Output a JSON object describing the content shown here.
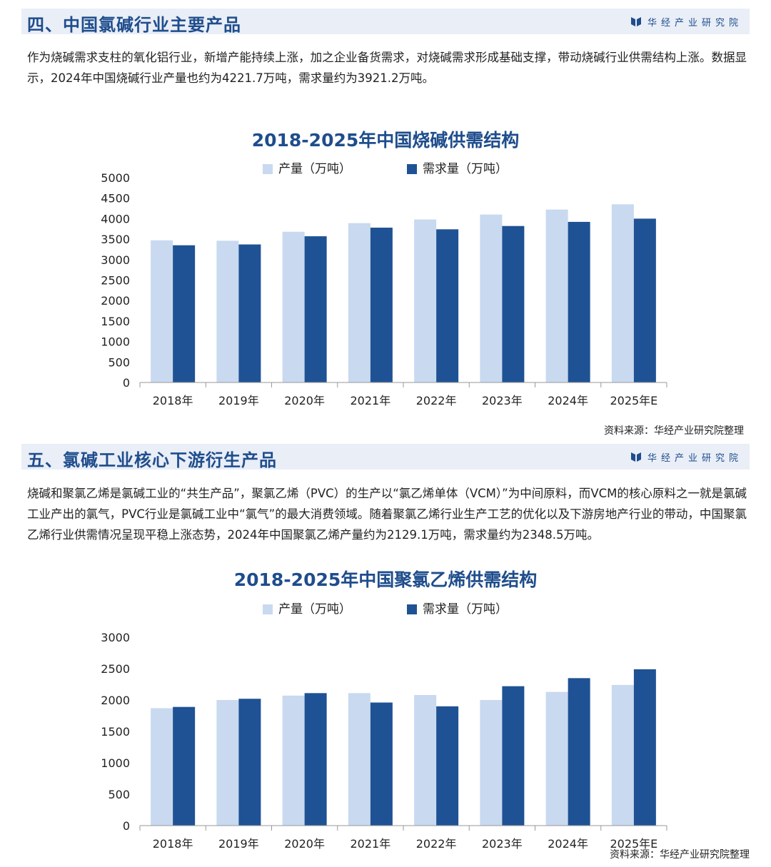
{
  "brand": {
    "name": "华经产业研究院"
  },
  "colors": {
    "production": "#c8d9f0",
    "demand": "#1f5294",
    "title": "#1f4d8c"
  },
  "section4": {
    "title": "四、中国氯碱行业主要产品",
    "paragraph": "作为烧碱需求支柱的氧化铝行业，新增产能持续上涨，加之企业备货需求，对烧碱需求形成基础支撑，带动烧碱行业供需结构上涨。数据显示，2024年中国烧碱行业产量也约为4221.7万吨，需求量约为3921.2万吨。",
    "source": "资料来源：华经产业研究院整理"
  },
  "section5": {
    "title": "五、氯碱工业核心下游衍生产品",
    "paragraph": "烧碱和聚氯乙烯是氯碱工业的“共生产品”，聚氯乙烯（PVC）的生产以“氯乙烯单体（VCM）”为中间原料，而VCM的核心原料之一就是氯碱工业产出的氯气，PVC行业是氯碱工业中“氯气”的最大消费领域。随着聚氯乙烯行业生产工艺的优化以及下游房地产行业的带动，中国聚氯乙烯行业供需情况呈现平稳上涨态势，2024年中国聚氯乙烯产量约为2129.1万吨，需求量约为2348.5万吨。",
    "source": "资料来源：华经产业研究院整理"
  },
  "chart_data": [
    {
      "type": "bar",
      "title": "2018-2025年中国烧碱供需结构",
      "categories": [
        "2018年",
        "2019年",
        "2020年",
        "2021年",
        "2022年",
        "2023年",
        "2024年",
        "2025年E"
      ],
      "series": [
        {
          "name": "产量（万吨）",
          "values": [
            3470,
            3460,
            3680,
            3890,
            3980,
            4100,
            4221.7,
            4350
          ]
        },
        {
          "name": "需求量（万吨）",
          "values": [
            3350,
            3370,
            3570,
            3780,
            3740,
            3820,
            3921.2,
            4000
          ]
        }
      ],
      "ylim": [
        0,
        5000
      ],
      "yticks": [
        0,
        500,
        1000,
        1500,
        2000,
        2500,
        3000,
        3500,
        4000,
        4500,
        5000
      ],
      "legend": "top-center",
      "grid": false
    },
    {
      "type": "bar",
      "title": "2018-2025年中国聚氯乙烯供需结构",
      "categories": [
        "2018年",
        "2019年",
        "2020年",
        "2021年",
        "2022年",
        "2023年",
        "2024年",
        "2025年E"
      ],
      "series": [
        {
          "name": "产量（万吨）",
          "values": [
            1870,
            2000,
            2070,
            2110,
            2080,
            2000,
            2129.1,
            2240
          ]
        },
        {
          "name": "需求量（万吨）",
          "values": [
            1890,
            2020,
            2110,
            1960,
            1900,
            2220,
            2348.5,
            2490
          ]
        }
      ],
      "ylim": [
        0,
        3000
      ],
      "yticks": [
        0,
        500,
        1000,
        1500,
        2000,
        2500,
        3000
      ],
      "legend": "top-center",
      "grid": false
    }
  ]
}
